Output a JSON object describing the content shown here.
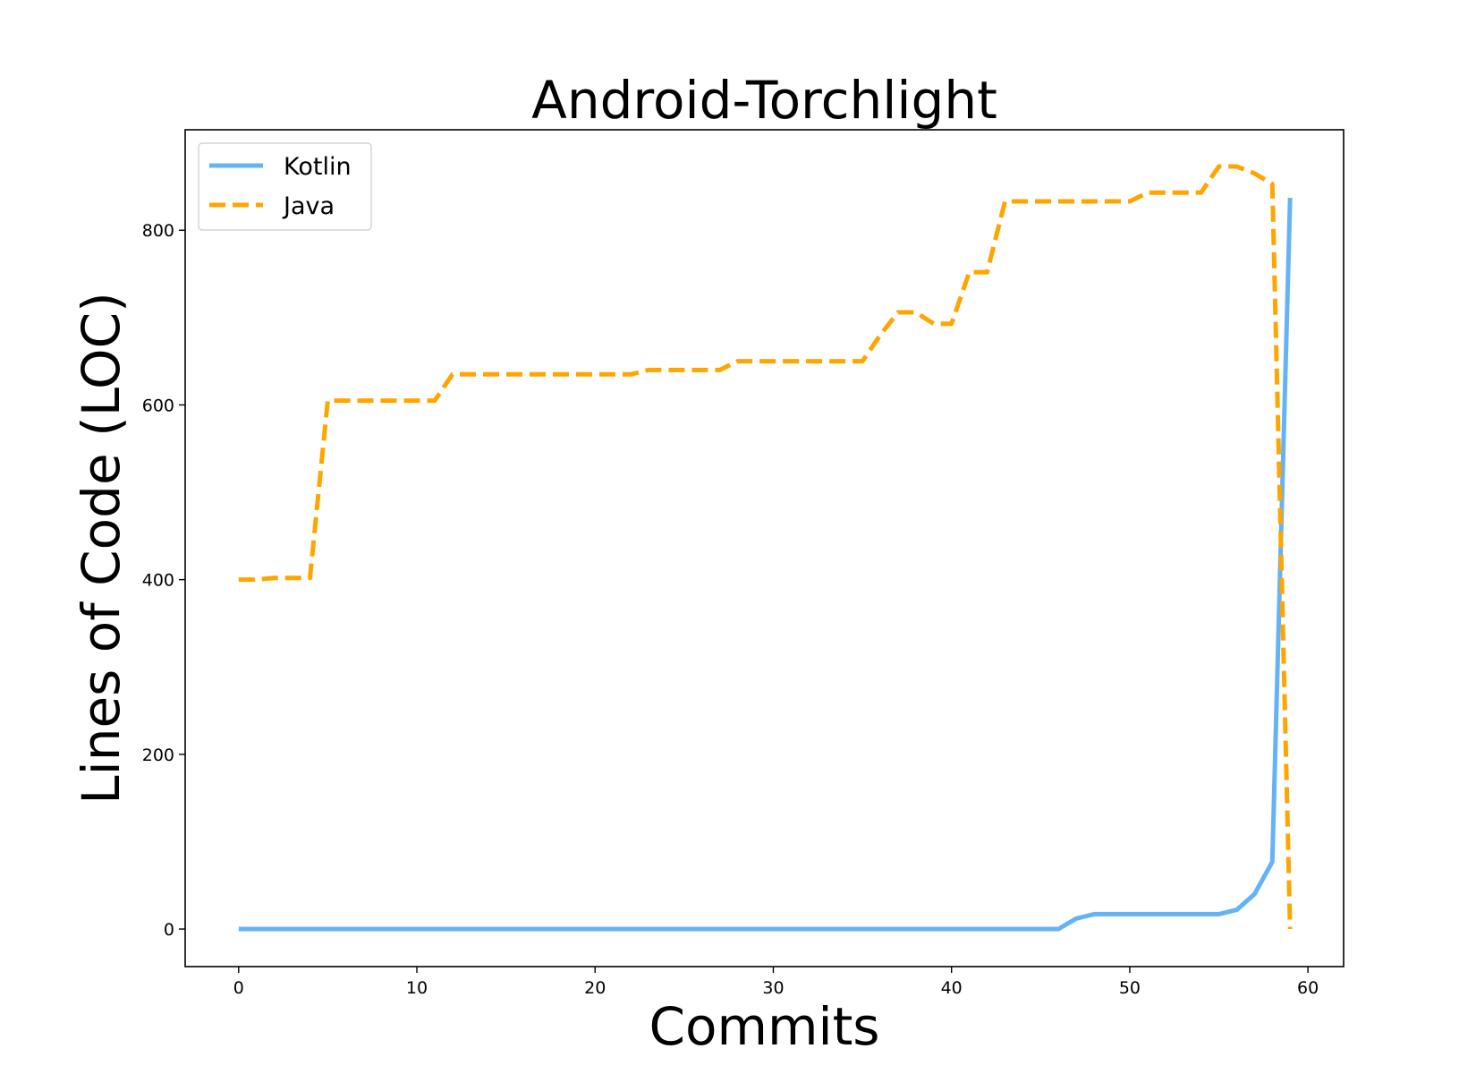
{
  "chart_data": {
    "type": "line",
    "title": "Android-Torchlight",
    "xlabel": "Commits",
    "ylabel": "Lines of Code (LOC)",
    "xlim": [
      -3,
      62
    ],
    "ylim": [
      -43,
      915
    ],
    "x_ticks": [
      0,
      10,
      20,
      30,
      40,
      50,
      60
    ],
    "y_ticks": [
      0,
      200,
      400,
      600,
      800
    ],
    "x_tick_labels": [
      "0",
      "10",
      "20",
      "30",
      "40",
      "50",
      "60"
    ],
    "y_tick_labels": [
      "0",
      "200",
      "400",
      "600",
      "800"
    ],
    "grid": false,
    "legend_position": "top-left",
    "x": [
      0,
      1,
      2,
      3,
      4,
      5,
      6,
      7,
      8,
      9,
      10,
      11,
      12,
      13,
      14,
      15,
      16,
      17,
      18,
      19,
      20,
      21,
      22,
      23,
      24,
      25,
      26,
      27,
      28,
      29,
      30,
      31,
      32,
      33,
      34,
      35,
      36,
      37,
      38,
      39,
      40,
      41,
      42,
      43,
      44,
      45,
      46,
      47,
      48,
      49,
      50,
      51,
      52,
      53,
      54,
      55,
      56,
      57,
      58,
      59
    ],
    "series": [
      {
        "name": "Kotlin",
        "color": "#63b3f6",
        "style": "solid",
        "values": [
          0,
          0,
          0,
          0,
          0,
          0,
          0,
          0,
          0,
          0,
          0,
          0,
          0,
          0,
          0,
          0,
          0,
          0,
          0,
          0,
          0,
          0,
          0,
          0,
          0,
          0,
          0,
          0,
          0,
          0,
          0,
          0,
          0,
          0,
          0,
          0,
          0,
          0,
          0,
          0,
          0,
          0,
          0,
          0,
          0,
          0,
          0,
          12,
          17,
          17,
          17,
          17,
          17,
          17,
          17,
          17,
          22,
          40,
          77,
          837
        ]
      },
      {
        "name": "Java",
        "color": "#ffa500",
        "style": "dashed",
        "values": [
          400,
          400,
          402,
          402,
          402,
          605,
          605,
          605,
          605,
          605,
          605,
          605,
          635,
          635,
          635,
          635,
          635,
          635,
          635,
          635,
          635,
          635,
          635,
          640,
          640,
          640,
          640,
          640,
          650,
          650,
          650,
          650,
          650,
          650,
          650,
          650,
          680,
          706,
          706,
          693,
          693,
          752,
          752,
          833,
          833,
          833,
          833,
          833,
          833,
          833,
          833,
          843,
          843,
          843,
          843,
          873,
          873,
          865,
          853,
          0
        ]
      }
    ]
  }
}
